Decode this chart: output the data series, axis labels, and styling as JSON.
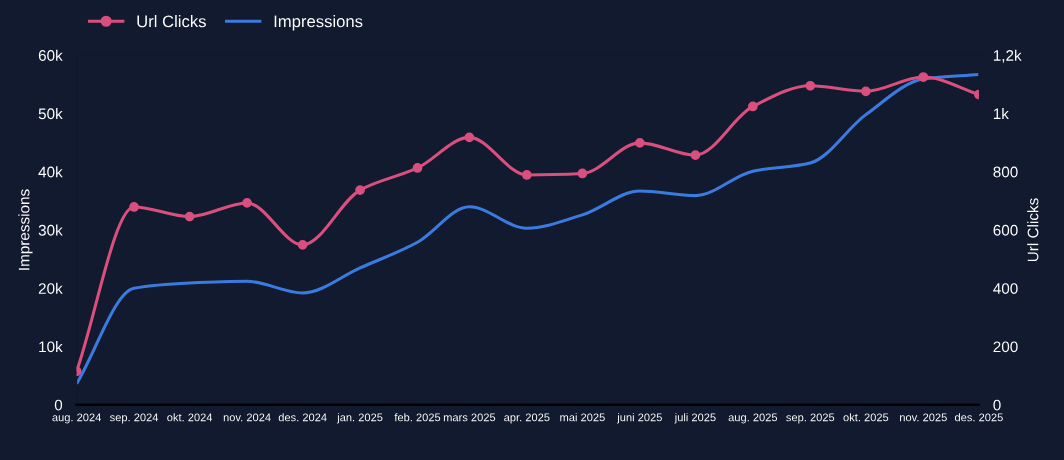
{
  "chart_data": {
    "type": "line",
    "x": [
      "2024-08",
      "2024-09",
      "2024-10",
      "2024-11",
      "2024-12",
      "2025-01",
      "2025-02",
      "2025-03",
      "2025-04",
      "2025-05",
      "2025-06",
      "2025-07",
      "2025-08",
      "2025-09",
      "2025-10",
      "2025-11",
      "2025-12"
    ],
    "series": [
      {
        "name": "Url Clicks",
        "color": "#d94f7e",
        "axis": "y2",
        "marker": "circle",
        "values": [
          115,
          679,
          646,
          693,
          549,
          737,
          813,
          918,
          789,
          794,
          899,
          857,
          1024,
          1095,
          1076,
          1125,
          1065
        ]
      },
      {
        "name": "Impressions",
        "color": "#3b7be0",
        "marker": "none",
        "values": [
          3600,
          20000,
          20900,
          21200,
          19200,
          23500,
          27900,
          34000,
          30300,
          32600,
          36700,
          35900,
          40100,
          41500,
          49800,
          55900,
          56700
        ]
      }
    ],
    "ylabel": "Impressions",
    "y2label": "Url Clicks",
    "xlim": [
      "2024-08",
      "2025-12"
    ],
    "xticks": [
      {
        "value": "2024-08",
        "label": "aug. 2024"
      },
      {
        "value": "2024-09",
        "label": "sep. 2024"
      },
      {
        "value": "2024-10",
        "label": "okt. 2024"
      },
      {
        "value": "2024-11",
        "label": "nov. 2024"
      },
      {
        "value": "2024-12",
        "label": "des. 2024"
      },
      {
        "value": "2025-01",
        "label": "jan. 2025"
      },
      {
        "value": "2025-02",
        "label": "feb. 2025"
      },
      {
        "value": "2025-03",
        "label": "mars 2025"
      },
      {
        "value": "2025-04",
        "label": "apr. 2025"
      },
      {
        "value": "2025-05",
        "label": "mai 2025"
      },
      {
        "value": "2025-06",
        "label": "juni 2025"
      },
      {
        "value": "2025-07",
        "label": "juli 2025"
      },
      {
        "value": "2025-08",
        "label": "aug. 2025"
      },
      {
        "value": "2025-09",
        "label": "sep. 2025"
      },
      {
        "value": "2025-10",
        "label": "okt. 2025"
      },
      {
        "value": "2025-11",
        "label": "nov. 2025"
      },
      {
        "value": "2025-12",
        "label": "des. 2025"
      }
    ],
    "ylim": [
      0,
      60000
    ],
    "yticks": [
      0,
      {
        "value": 10000,
        "label": "10k"
      },
      {
        "value": 20000,
        "label": "20k"
      },
      {
        "value": 30000,
        "label": "30k"
      },
      {
        "value": 40000,
        "label": "40k"
      },
      {
        "value": 50000,
        "label": "50k"
      },
      {
        "value": 60000,
        "label": "60k"
      }
    ],
    "y2lim": [
      0,
      1200
    ],
    "y2ticks": [
      0,
      200,
      400,
      600,
      800,
      {
        "value": 1000,
        "label": "1k"
      },
      {
        "value": 1200,
        "label": "1,2k"
      }
    ],
    "grid": false,
    "legend": "top left",
    "line_style": "solid"
  }
}
